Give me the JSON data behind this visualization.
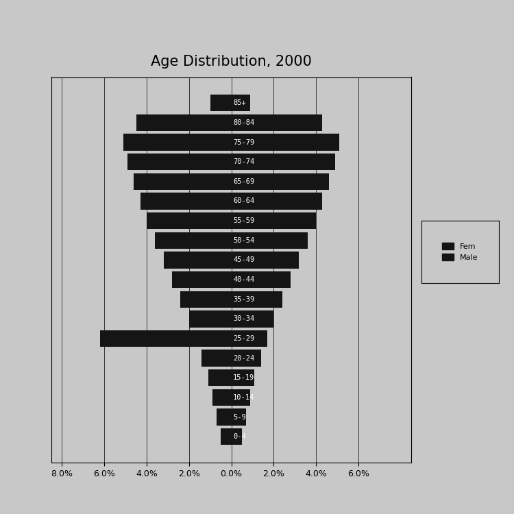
{
  "title": "Age Distribution, 2000",
  "age_groups": [
    "0-4",
    "5-9",
    "10-14",
    "15-19",
    "20-24",
    "25-29",
    "30-34",
    "35-39",
    "40-44",
    "45-49",
    "50-54",
    "55-59",
    "60-64",
    "65-69",
    "70-74",
    "75-79",
    "80-84",
    "85+"
  ],
  "female": [
    0.5,
    0.7,
    0.9,
    1.1,
    1.4,
    6.2,
    2.0,
    2.4,
    2.8,
    3.2,
    3.6,
    4.0,
    4.3,
    4.6,
    4.9,
    5.1,
    4.5,
    1.0
  ],
  "male": [
    0.5,
    0.7,
    0.9,
    1.1,
    1.4,
    1.7,
    2.0,
    2.4,
    2.8,
    3.2,
    3.6,
    4.0,
    4.3,
    4.6,
    4.9,
    5.1,
    4.3,
    0.9
  ],
  "xlim": 8.5,
  "xtick_vals": [
    -8.0,
    -6.0,
    -4.0,
    -2.0,
    0.0,
    2.0,
    4.0,
    6.0
  ],
  "xticklabels": [
    "8.0%",
    "6.0%",
    "4.0%",
    "2.0%",
    "0.0%",
    "2.0%",
    "4.0%",
    "6.0%"
  ],
  "bar_color": "#151515",
  "bg_color": "#c8c8c8",
  "plot_bg_color": "#c8c8c8",
  "legend_female": "Fem",
  "legend_male": "Male",
  "title_fontsize": 15,
  "label_fontsize": 7.5
}
